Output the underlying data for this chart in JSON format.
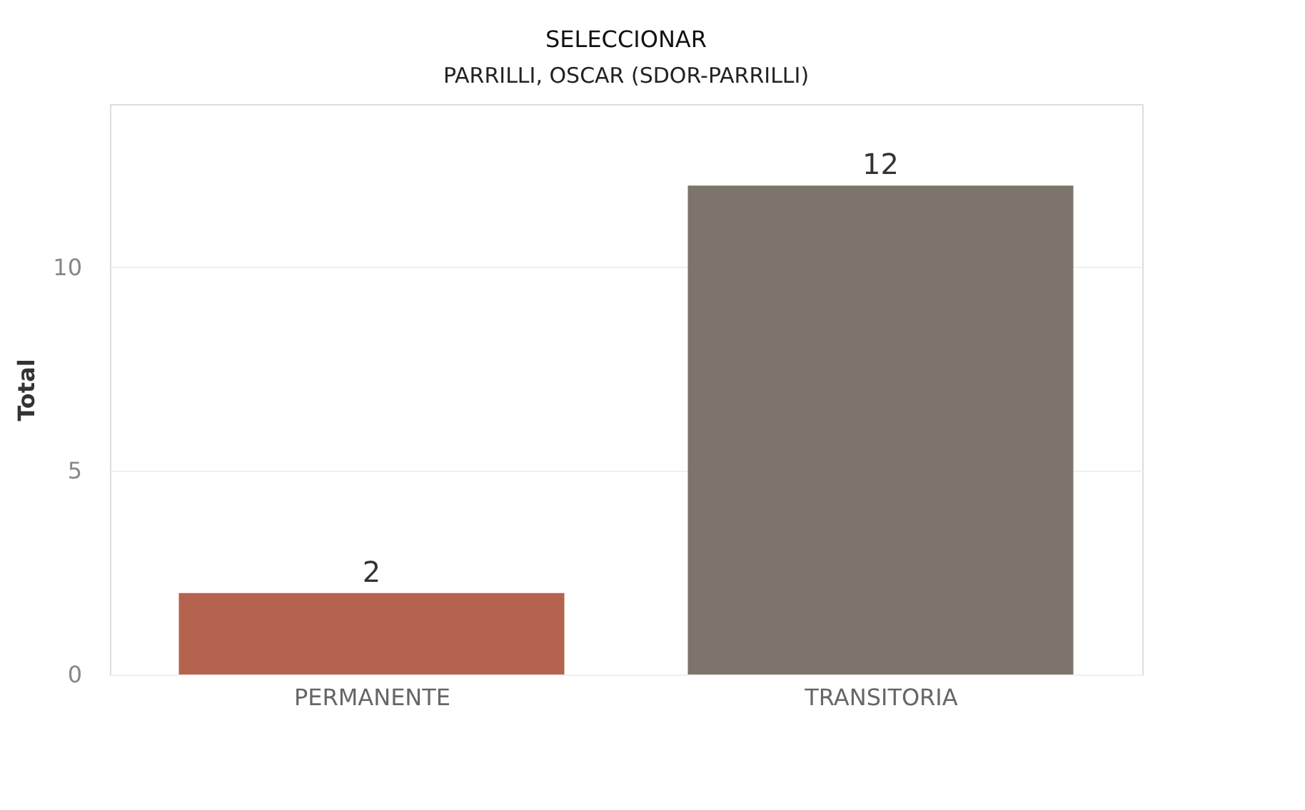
{
  "chart_data": {
    "type": "bar",
    "title": "SELECCIONAR",
    "subtitle": "PARRILLI, OSCAR (SDOR-PARRILLI)",
    "ylabel": "Total",
    "categories": [
      "PERMANENTE",
      "TRANSITORIA"
    ],
    "values": [
      2,
      12
    ],
    "colors": [
      "#b5634f",
      "#7d746b"
    ],
    "ylim": [
      0,
      14
    ],
    "yticks": [
      0,
      5,
      10
    ],
    "grid": "y",
    "data_labels": true
  }
}
